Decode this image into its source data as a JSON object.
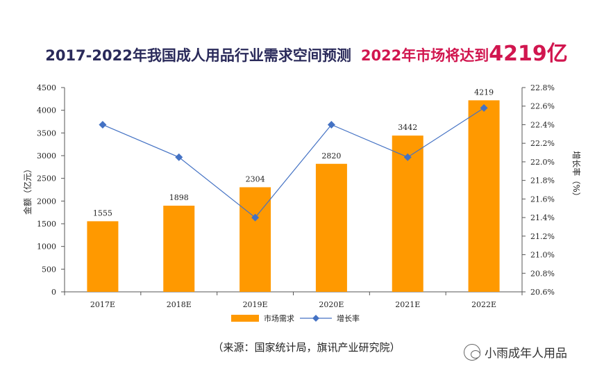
{
  "title": {
    "main": "2017-2022年我国成人用品行业需求空间预测",
    "accent_prefix": "2022年市场将达到",
    "accent_value": "4219亿"
  },
  "source": "（来源：国家统计局，旗讯产业研究院）",
  "watermark": "小雨成年人用品",
  "colors": {
    "bar": "#ff9900",
    "line": "#4472c4",
    "title_dark": "#2a2a5a",
    "title_accent": "#d1164f"
  },
  "chart_data": {
    "type": "bar",
    "categories": [
      "2017E",
      "2018E",
      "2019E",
      "2020E",
      "2021E",
      "2022E"
    ],
    "series": [
      {
        "name": "市场需求",
        "type": "bar",
        "axis": "left",
        "values": [
          1555,
          1898,
          2304,
          2820,
          3442,
          4219
        ]
      },
      {
        "name": "增长率",
        "type": "line",
        "axis": "right",
        "values": [
          22.4,
          22.05,
          21.4,
          22.4,
          22.05,
          22.58
        ]
      }
    ],
    "ylabel": "金额（亿元）",
    "y2label": "增长率（%）",
    "ylim": [
      0,
      4500
    ],
    "y2lim": [
      20.6,
      22.8
    ],
    "yticks": [
      "0",
      "500",
      "1000",
      "1500",
      "2000",
      "2500",
      "3000",
      "3500",
      "4000",
      "4500"
    ],
    "y2ticks": [
      "20.6%",
      "20.8%",
      "21.0%",
      "21.2%",
      "21.4%",
      "21.6%",
      "21.8%",
      "22.0%",
      "22.2%",
      "22.4%",
      "22.6%",
      "22.8%"
    ],
    "data_labels": [
      "1555",
      "1898",
      "2304",
      "2820",
      "3442",
      "4219"
    ],
    "grid": false,
    "legend_position": "bottom"
  }
}
